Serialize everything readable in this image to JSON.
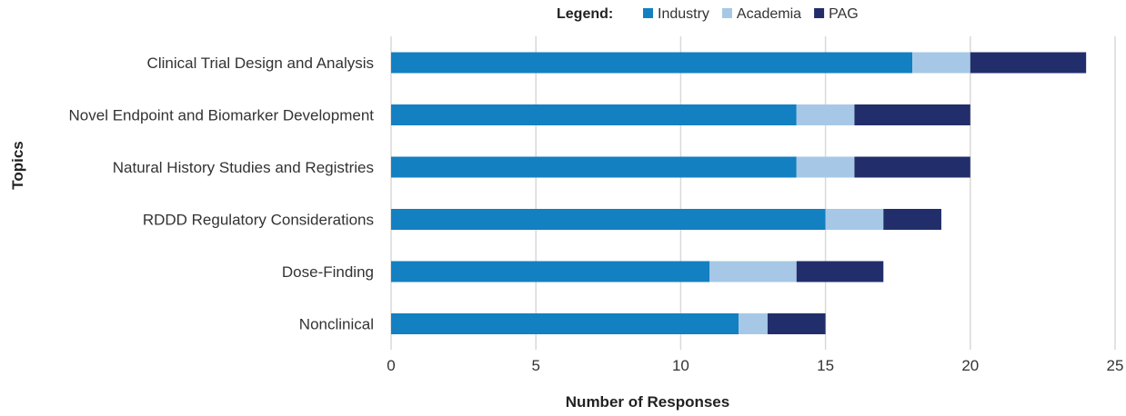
{
  "chart_data": {
    "type": "bar",
    "orientation": "horizontal",
    "stacked": true,
    "categories": [
      "Clinical Trial Design and Analysis",
      "Novel Endpoint and Biomarker Development",
      "Natural History Studies and Registries",
      "RDDD Regulatory Considerations",
      "Dose-Finding",
      "Nonclinical"
    ],
    "series": [
      {
        "name": "Industry",
        "color": "#1380c1",
        "values": [
          18,
          14,
          14,
          15,
          11,
          12
        ]
      },
      {
        "name": "Academia",
        "color": "#a6c8e6",
        "values": [
          2,
          2,
          2,
          2,
          3,
          1
        ]
      },
      {
        "name": "PAG",
        "color": "#222e6b",
        "values": [
          4,
          4,
          4,
          2,
          3,
          2
        ]
      }
    ],
    "xlabel": "Number of Responses",
    "ylabel": "Topics",
    "xlim": [
      0,
      25
    ],
    "xticks": [
      0,
      5,
      10,
      15,
      20,
      25
    ],
    "legend_title": "Legend:",
    "legend_position": "top",
    "grid": "vertical"
  }
}
